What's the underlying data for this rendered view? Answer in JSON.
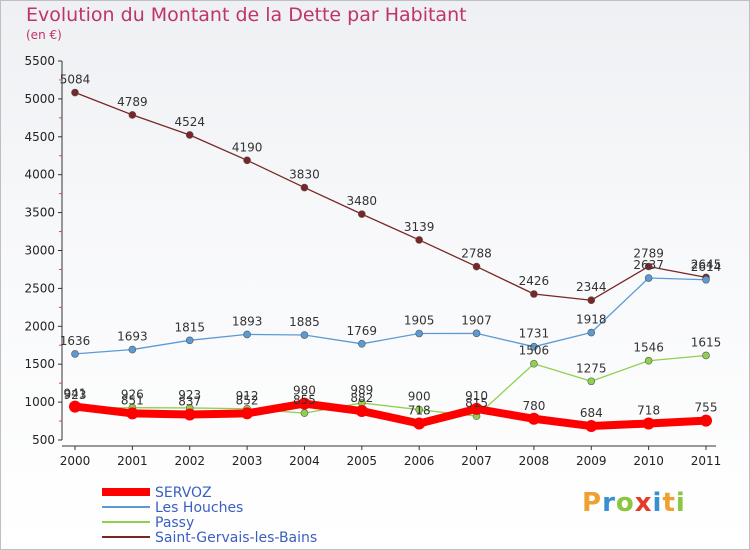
{
  "header": {
    "title": "Evolution du Montant de la Dette par Habitant",
    "subtitle": "(en €)"
  },
  "logo": {
    "text": "Proxiti"
  },
  "chart_data": {
    "type": "line",
    "title": "Evolution du Montant de la Dette par Habitant",
    "subtitle": "(en €)",
    "x": [
      "2000",
      "2001",
      "2002",
      "2003",
      "2004",
      "2005",
      "2006",
      "2007",
      "2008",
      "2009",
      "2010",
      "2011"
    ],
    "ylim": [
      500,
      5500
    ],
    "yticks": [
      500,
      1000,
      1500,
      2000,
      2500,
      3000,
      3500,
      4000,
      4500,
      5000,
      5500
    ],
    "grid": false,
    "legend_position": "bottom-left",
    "series": [
      {
        "name": "SERVOZ",
        "color": "#ff0000",
        "values": [
          941,
          851,
          837,
          852,
          980,
          882,
          718,
          910,
          780,
          684,
          718,
          755
        ]
      },
      {
        "name": "Les Houches",
        "color": "#5b9bd5",
        "values": [
          1636,
          1693,
          1815,
          1893,
          1885,
          1769,
          1905,
          1907,
          1731,
          1918,
          2637,
          2614
        ]
      },
      {
        "name": "Passy",
        "color": "#8fd14f",
        "values": [
          923,
          926,
          923,
          912,
          855,
          989,
          900,
          815,
          1506,
          1275,
          1546,
          1615
        ]
      },
      {
        "name": "Saint-Gervais-les-Bains",
        "color": "#7a2626",
        "values": [
          5084,
          4789,
          4524,
          4190,
          3830,
          3480,
          3139,
          2788,
          2426,
          2344,
          2789,
          2645
        ]
      }
    ]
  }
}
